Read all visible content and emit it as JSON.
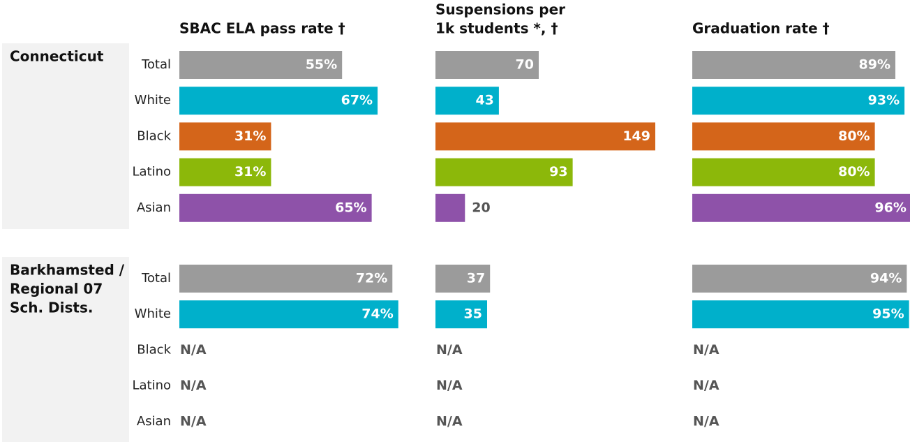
{
  "columns": [
    {
      "title": [
        "SBAC ELA pass rate †"
      ],
      "xlim": [
        0,
        100
      ]
    },
    {
      "title": [
        "Suspensions per",
        "1k students *, †"
      ],
      "xlim": [
        0,
        149
      ]
    },
    {
      "title": [
        "Graduation rate †"
      ],
      "xlim": [
        0,
        100
      ]
    }
  ],
  "groups": [
    {
      "name": [
        "Connecticut"
      ],
      "rows": [
        {
          "label": "Total",
          "color": "#9b9b9b",
          "values": [
            55,
            70,
            89
          ],
          "value_labels": [
            "55%",
            "70",
            "89%"
          ]
        },
        {
          "label": "White",
          "color": "#00b0cb",
          "values": [
            67,
            43,
            93
          ],
          "value_labels": [
            "67%",
            "43",
            "93%"
          ]
        },
        {
          "label": "Black",
          "color": "#d4651a",
          "values": [
            31,
            149,
            80
          ],
          "value_labels": [
            "31%",
            "149",
            "80%"
          ]
        },
        {
          "label": "Latino",
          "color": "#8cb80a",
          "values": [
            31,
            93,
            80
          ],
          "value_labels": [
            "31%",
            "93",
            "80%"
          ]
        },
        {
          "label": "Asian",
          "color": "#8e52a9",
          "values": [
            65,
            20,
            96
          ],
          "value_labels": [
            "65%",
            "20",
            "96%"
          ]
        }
      ]
    },
    {
      "name": [
        "Barkhamsted /",
        "Regional 07",
        "Sch. Dists."
      ],
      "rows": [
        {
          "label": "Total",
          "color": "#9b9b9b",
          "values": [
            72,
            37,
            94
          ],
          "value_labels": [
            "72%",
            "37",
            "94%"
          ]
        },
        {
          "label": "White",
          "color": "#00b0cb",
          "values": [
            74,
            35,
            95
          ],
          "value_labels": [
            "74%",
            "35",
            "95%"
          ]
        },
        {
          "label": "Black",
          "color": "#d4651a",
          "values": [
            null,
            null,
            null
          ],
          "value_labels": [
            "N/A",
            "N/A",
            "N/A"
          ]
        },
        {
          "label": "Latino",
          "color": "#8cb80a",
          "values": [
            null,
            null,
            null
          ],
          "value_labels": [
            "N/A",
            "N/A",
            "N/A"
          ]
        },
        {
          "label": "Asian",
          "color": "#8e52a9",
          "values": [
            null,
            null,
            null
          ],
          "value_labels": [
            "N/A",
            "N/A",
            "N/A"
          ]
        }
      ]
    }
  ]
}
